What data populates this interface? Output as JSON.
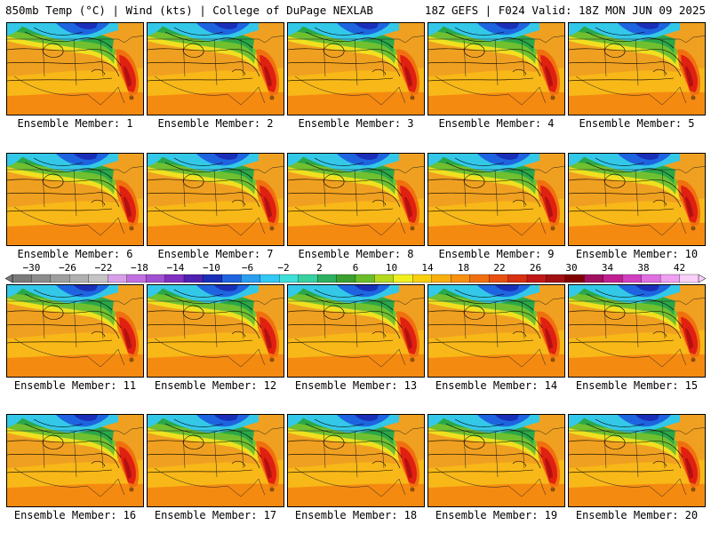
{
  "header": {
    "title_left": "850mb Temp (°C) | Wind (kts) | College of DuPage NEXLAB",
    "title_right": "18Z GEFS | F024 Valid: 18Z MON JUN 09 2025"
  },
  "members": [
    "Ensemble Member: 1",
    "Ensemble Member: 2",
    "Ensemble Member: 3",
    "Ensemble Member: 4",
    "Ensemble Member: 5",
    "Ensemble Member: 6",
    "Ensemble Member: 7",
    "Ensemble Member: 8",
    "Ensemble Member: 9",
    "Ensemble Member: 10",
    "Ensemble Member: 11",
    "Ensemble Member: 12",
    "Ensemble Member: 13",
    "Ensemble Member: 14",
    "Ensemble Member: 15",
    "Ensemble Member: 16",
    "Ensemble Member: 17",
    "Ensemble Member: 18",
    "Ensemble Member: 19",
    "Ensemble Member: 20"
  ],
  "colorbar": {
    "labels": [
      "−30",
      "−26",
      "−22",
      "−18",
      "−14",
      "−10",
      "−6",
      "−2",
      "2",
      "6",
      "10",
      "14",
      "18",
      "22",
      "26",
      "30",
      "34",
      "38",
      "42"
    ],
    "label_values": [
      -30,
      -26,
      -22,
      -18,
      -14,
      -10,
      -6,
      -2,
      2,
      6,
      10,
      14,
      18,
      22,
      26,
      30,
      34,
      38,
      42
    ],
    "colors": [
      "#7a7a7a",
      "#8c8c8c",
      "#9e9e9e",
      "#b0b0b0",
      "#c4c4c4",
      "#d8a0e8",
      "#c070e0",
      "#a050d0",
      "#8030c0",
      "#5020b0",
      "#1a2fb8",
      "#1e64e0",
      "#2b9ef0",
      "#33c8f5",
      "#3ee0d8",
      "#38d0a0",
      "#2fb060",
      "#3aa030",
      "#6cbd2a",
      "#b4d820",
      "#f0f020",
      "#f8d010",
      "#f8b010",
      "#f89010",
      "#f07010",
      "#e85010",
      "#d83010",
      "#c01818",
      "#a01010",
      "#800000",
      "#a01060",
      "#c02090",
      "#d040c0",
      "#e070e0",
      "#f0a0f0",
      "#f8d0f8"
    ]
  },
  "map_colors": {
    "cold": "#1e3fc0",
    "cool": "#33b8e8",
    "mild": "#2aa848",
    "warm": "#f0a020",
    "hot": "#e02010",
    "contour": "#000000",
    "border": "#222222"
  }
}
